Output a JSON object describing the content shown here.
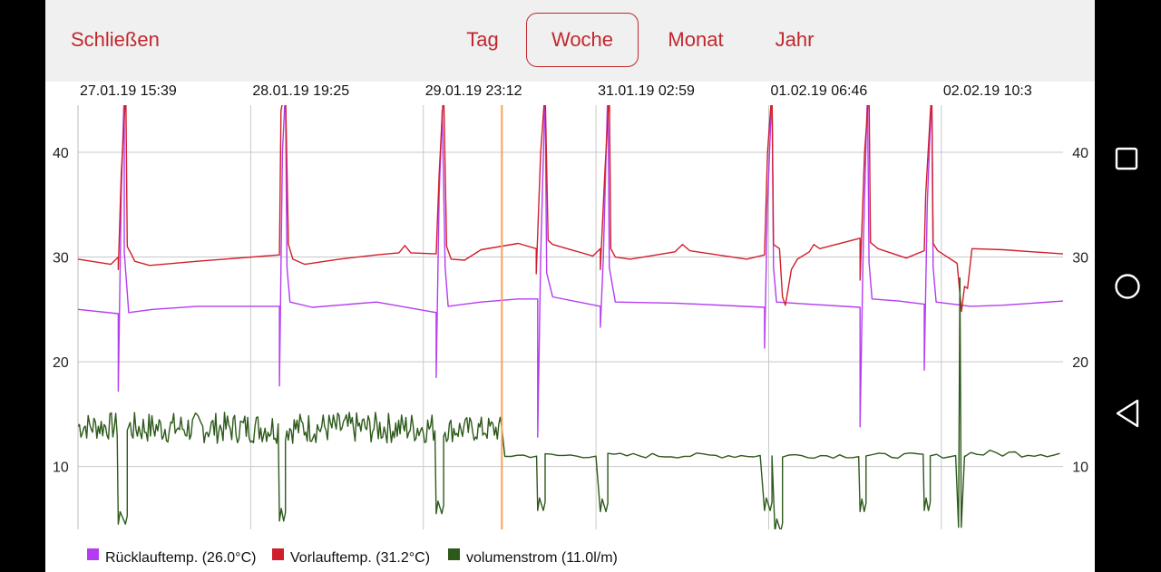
{
  "toolbar": {
    "close_label": "Schließen",
    "tabs": [
      {
        "label": "Tag",
        "active": false
      },
      {
        "label": "Woche",
        "active": true
      },
      {
        "label": "Monat",
        "active": false
      },
      {
        "label": "Jahr",
        "active": false
      }
    ]
  },
  "colors": {
    "accent": "#c0282d",
    "ruecklauf": "#b43cf0",
    "vorlauf": "#d01f2c",
    "volumen": "#2d5a1a",
    "cursor": "#f5a35a"
  },
  "nav_icons": [
    "recents-square-icon",
    "home-circle-icon",
    "back-triangle-icon"
  ],
  "chart_data": {
    "type": "line",
    "title": "",
    "xlabel": "",
    "ylabel": "",
    "x_tick_labels": [
      "27.01.19 15:39",
      "28.01.19 19:25",
      "29.01.19 23:12",
      "31.01.19 02:59",
      "01.02.19 06:46",
      "02.02.19 10:3"
    ],
    "x_range_days": [
      0,
      6.6
    ],
    "ylim": [
      4,
      44.5
    ],
    "y_ticks": [
      10,
      20,
      30,
      40
    ],
    "grid": true,
    "legend_position": "bottom-left",
    "cursor_x_day": 2.84,
    "series": [
      {
        "name": "Rücklauftemp. (26.0°C)",
        "color": "#b43cf0",
        "points": [
          [
            0,
            25
          ],
          [
            0.27,
            24.6
          ],
          [
            0.27,
            17.2
          ],
          [
            0.29,
            36
          ],
          [
            0.31,
            46
          ],
          [
            0.31,
            30.5
          ],
          [
            0.34,
            24.7
          ],
          [
            0.5,
            25
          ],
          [
            0.8,
            25.3
          ],
          [
            1.35,
            25.3
          ],
          [
            1.35,
            17.7
          ],
          [
            1.37,
            40
          ],
          [
            1.39,
            46
          ],
          [
            1.4,
            29
          ],
          [
            1.42,
            25.7
          ],
          [
            1.57,
            25.2
          ],
          [
            2.0,
            25.7
          ],
          [
            2.4,
            24.7
          ],
          [
            2.4,
            18.5
          ],
          [
            2.42,
            36
          ],
          [
            2.44,
            44
          ],
          [
            2.46,
            29
          ],
          [
            2.48,
            25.3
          ],
          [
            2.7,
            25.7
          ],
          [
            2.95,
            26
          ],
          [
            3.08,
            26
          ],
          [
            3.08,
            12.8
          ],
          [
            3.1,
            30
          ],
          [
            3.13,
            46
          ],
          [
            3.14,
            28.5
          ],
          [
            3.18,
            26.2
          ],
          [
            3.5,
            25.3
          ],
          [
            3.5,
            23.3
          ],
          [
            3.52,
            30
          ],
          [
            3.55,
            46
          ],
          [
            3.56,
            29
          ],
          [
            3.6,
            25.7
          ],
          [
            4.0,
            25.6
          ],
          [
            4.6,
            25.2
          ],
          [
            4.6,
            21.3
          ],
          [
            4.62,
            35
          ],
          [
            4.65,
            46
          ],
          [
            4.66,
            29
          ],
          [
            4.68,
            25.7
          ],
          [
            4.9,
            25.5
          ],
          [
            5.24,
            25.2
          ],
          [
            5.24,
            13.8
          ],
          [
            5.26,
            30
          ],
          [
            5.29,
            46
          ],
          [
            5.3,
            29.5
          ],
          [
            5.32,
            26
          ],
          [
            5.5,
            25.8
          ],
          [
            5.67,
            25.5
          ],
          [
            5.67,
            19.2
          ],
          [
            5.69,
            35
          ],
          [
            5.72,
            46
          ],
          [
            5.73,
            29
          ],
          [
            5.75,
            25.7
          ],
          [
            5.98,
            25.3
          ],
          [
            6.2,
            25.4
          ],
          [
            6.6,
            25.8
          ]
        ]
      },
      {
        "name": "Vorlauftemp. (31.2°C)",
        "color": "#d01f2c",
        "points": [
          [
            0,
            29.8
          ],
          [
            0.22,
            29.3
          ],
          [
            0.27,
            30
          ],
          [
            0.27,
            28.8
          ],
          [
            0.29,
            38
          ],
          [
            0.32,
            46
          ],
          [
            0.33,
            31
          ],
          [
            0.36,
            30.2
          ],
          [
            0.38,
            29.6
          ],
          [
            0.48,
            29.2
          ],
          [
            0.8,
            29.6
          ],
          [
            1.35,
            30.2
          ],
          [
            1.36,
            44
          ],
          [
            1.39,
            46
          ],
          [
            1.41,
            31.2
          ],
          [
            1.44,
            29.8
          ],
          [
            1.52,
            29.3
          ],
          [
            1.75,
            29.8
          ],
          [
            2.0,
            30.2
          ],
          [
            2.15,
            30.4
          ],
          [
            2.19,
            31.1
          ],
          [
            2.23,
            30.4
          ],
          [
            2.4,
            30.3
          ],
          [
            2.42,
            38
          ],
          [
            2.45,
            46
          ],
          [
            2.47,
            31
          ],
          [
            2.5,
            29.8
          ],
          [
            2.59,
            29.7
          ],
          [
            2.7,
            30.7
          ],
          [
            2.95,
            31.3
          ],
          [
            3.07,
            30.8
          ],
          [
            3.07,
            28.4
          ],
          [
            3.1,
            40
          ],
          [
            3.13,
            46
          ],
          [
            3.15,
            31.6
          ],
          [
            3.18,
            31.2
          ],
          [
            3.45,
            30.1
          ],
          [
            3.5,
            30.8
          ],
          [
            3.5,
            28.8
          ],
          [
            3.53,
            38
          ],
          [
            3.56,
            46
          ],
          [
            3.57,
            30.8
          ],
          [
            3.6,
            30
          ],
          [
            3.7,
            29.8
          ],
          [
            4.0,
            30.5
          ],
          [
            4.05,
            31.2
          ],
          [
            4.1,
            30.6
          ],
          [
            4.48,
            29.8
          ],
          [
            4.6,
            30.2
          ],
          [
            4.62,
            40
          ],
          [
            4.65,
            46
          ],
          [
            4.66,
            31.2
          ],
          [
            4.7,
            30.8
          ],
          [
            4.72,
            26.2
          ],
          [
            4.74,
            25.4
          ],
          [
            4.78,
            28.8
          ],
          [
            4.82,
            29.8
          ],
          [
            4.9,
            30.5
          ],
          [
            4.93,
            31.2
          ],
          [
            4.97,
            30.8
          ],
          [
            5.24,
            31.8
          ],
          [
            5.24,
            27.8
          ],
          [
            5.27,
            40
          ],
          [
            5.3,
            46
          ],
          [
            5.31,
            31.4
          ],
          [
            5.36,
            30.8
          ],
          [
            5.55,
            29.9
          ],
          [
            5.67,
            30.6
          ],
          [
            5.68,
            36
          ],
          [
            5.72,
            46
          ],
          [
            5.73,
            31.3
          ],
          [
            5.76,
            30.6
          ],
          [
            5.89,
            29.4
          ],
          [
            5.92,
            24.8
          ],
          [
            5.94,
            27.2
          ],
          [
            5.96,
            27
          ],
          [
            5.99,
            30.8
          ],
          [
            6.2,
            30.7
          ],
          [
            6.6,
            30.3
          ]
        ]
      },
      {
        "name": "volumenstrom (11.0l/m)",
        "color": "#2d5a1a",
        "segments": [
          {
            "type": "noise",
            "from": 0,
            "to": 0.27,
            "low": 12.5,
            "high": 15.2
          },
          {
            "type": "dip",
            "from": 0.27,
            "to": 0.33,
            "level": 4.5
          },
          {
            "type": "noise",
            "from": 0.33,
            "to": 1.35,
            "low": 12.2,
            "high": 15.2
          },
          {
            "type": "dip",
            "from": 1.35,
            "to": 1.39,
            "level": 4.8
          },
          {
            "type": "noise",
            "from": 1.39,
            "to": 2.4,
            "low": 12.2,
            "high": 15.2
          },
          {
            "type": "dip",
            "from": 2.4,
            "to": 2.45,
            "level": 5.5
          },
          {
            "type": "noise",
            "from": 2.45,
            "to": 2.84,
            "low": 12.3,
            "high": 14.8
          },
          {
            "type": "flat",
            "from": 2.86,
            "to": 3.08,
            "low": 10.8,
            "high": 11.3
          },
          {
            "type": "dip",
            "from": 3.08,
            "to": 3.13,
            "level": 5.8
          },
          {
            "type": "flat",
            "from": 3.13,
            "to": 3.5,
            "low": 10.8,
            "high": 11.3
          },
          {
            "type": "dip",
            "from": 3.5,
            "to": 3.55,
            "level": 5.7
          },
          {
            "type": "flat",
            "from": 3.55,
            "to": 4.6,
            "low": 10.8,
            "high": 11.3
          },
          {
            "type": "dip",
            "from": 4.6,
            "to": 4.65,
            "level": 5.8
          },
          {
            "type": "flat",
            "from": 4.65,
            "to": 4.67,
            "low": 10.9,
            "high": 11.1
          },
          {
            "type": "dip",
            "from": 4.67,
            "to": 4.72,
            "level": 3.8
          },
          {
            "type": "flat",
            "from": 4.72,
            "to": 5.24,
            "low": 10.8,
            "high": 11.3
          },
          {
            "type": "dip",
            "from": 5.24,
            "to": 5.28,
            "level": 5.7
          },
          {
            "type": "flat",
            "from": 5.28,
            "to": 5.67,
            "low": 10.8,
            "high": 11.3
          },
          {
            "type": "dip",
            "from": 5.67,
            "to": 5.71,
            "level": 5.8
          },
          {
            "type": "flat",
            "from": 5.71,
            "to": 5.9,
            "low": 10.8,
            "high": 11.2
          },
          {
            "type": "spike",
            "from": 5.9,
            "to": 5.94,
            "level": 28,
            "floor": 4.2
          },
          {
            "type": "flat",
            "from": 5.94,
            "to": 6.6,
            "low": 10.9,
            "high": 11.6
          }
        ]
      }
    ]
  }
}
